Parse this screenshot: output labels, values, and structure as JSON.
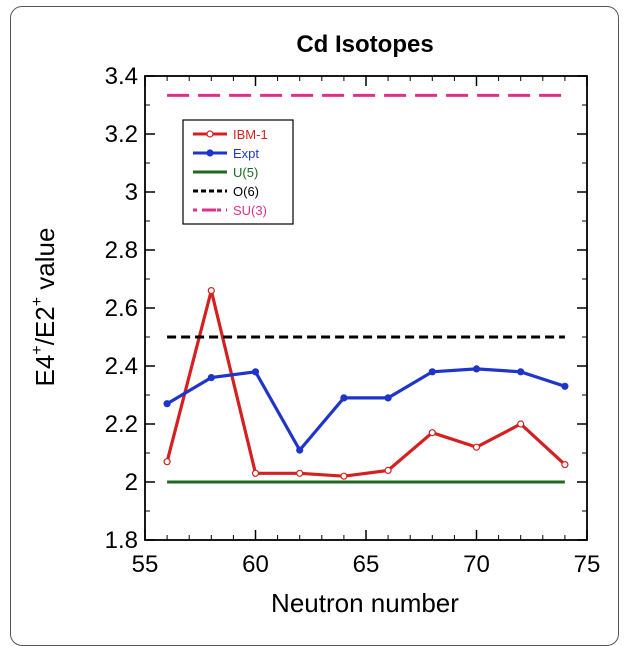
{
  "chart_data": {
    "type": "line",
    "title": "Cd Isotopes",
    "xlabel": "Neutron number",
    "ylabel_parts": [
      "E4",
      "+",
      "/E2",
      "+",
      " value"
    ],
    "xlim": [
      55,
      75
    ],
    "ylim": [
      1.8,
      3.4
    ],
    "xticks": [
      55,
      60,
      65,
      70,
      75
    ],
    "yticks": [
      1.8,
      2,
      2.2,
      2.4,
      2.6,
      2.8,
      3,
      3.2,
      3.4
    ],
    "series": [
      {
        "name": "IBM-1",
        "color": "#d42020",
        "style": "solid",
        "marker": "open-circle",
        "x": [
          56,
          58,
          60,
          62,
          64,
          66,
          68,
          70,
          72,
          74
        ],
        "y": [
          2.07,
          2.66,
          2.03,
          2.03,
          2.02,
          2.04,
          2.17,
          2.12,
          2.2,
          2.06
        ]
      },
      {
        "name": "Expt",
        "color": "#1f35c9",
        "style": "solid",
        "marker": "filled-circle",
        "x": [
          56,
          58,
          60,
          62,
          64,
          66,
          68,
          70,
          72,
          74
        ],
        "y": [
          2.27,
          2.36,
          2.38,
          2.11,
          2.29,
          2.29,
          2.38,
          2.39,
          2.38,
          2.33
        ]
      },
      {
        "name": "U(5)",
        "color": "#1e6b1e",
        "style": "solid",
        "marker": "none",
        "x": [
          56,
          74
        ],
        "y": [
          2.0,
          2.0
        ]
      },
      {
        "name": "O(6)",
        "color": "#000000",
        "style": "dashed-short",
        "marker": "none",
        "x": [
          56,
          74
        ],
        "y": [
          2.5,
          2.5
        ]
      },
      {
        "name": "SU(3)",
        "color": "#e0308a",
        "style": "dashed-long",
        "marker": "none",
        "x": [
          56,
          74
        ],
        "y": [
          3.333,
          3.333
        ]
      }
    ],
    "legend_placement": "top-left",
    "grid": false
  }
}
